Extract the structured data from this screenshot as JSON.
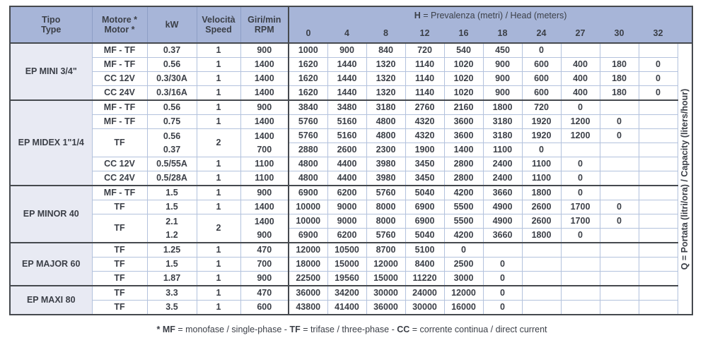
{
  "table": {
    "header": {
      "tipo": [
        "Tipo",
        "Type"
      ],
      "motore": [
        "Motore *",
        "Motor *"
      ],
      "kw": "kW",
      "velocita": [
        "Velocità",
        "Speed"
      ],
      "rpm": [
        "Giri/min",
        "RPM"
      ],
      "h_bold": "H",
      "h_rest": " = Prevalenza (metri) / Head (meters)",
      "head_cols": [
        "0",
        "4",
        "8",
        "12",
        "16",
        "18",
        "24",
        "27",
        "30",
        "32"
      ]
    },
    "q_label": "Q = Portata (litri/ora) / Capacity (liters/hour)",
    "groups": [
      {
        "name": "EP MINI 3/4\"",
        "rows": [
          {
            "motor": "MF - TF",
            "kw": "0.37",
            "speed": "1",
            "rpm": "900",
            "values": [
              "1000",
              "900",
              "840",
              "720",
              "540",
              "450",
              "0",
              "",
              "",
              ""
            ]
          },
          {
            "motor": "MF - TF",
            "kw": "0.56",
            "speed": "1",
            "rpm": "1400",
            "values": [
              "1620",
              "1440",
              "1320",
              "1140",
              "1020",
              "900",
              "600",
              "400",
              "180",
              "0"
            ]
          },
          {
            "motor": "CC 12V",
            "kw": "0.3/30A",
            "speed": "1",
            "rpm": "1400",
            "values": [
              "1620",
              "1440",
              "1320",
              "1140",
              "1020",
              "900",
              "600",
              "400",
              "180",
              "0"
            ]
          },
          {
            "motor": "CC 24V",
            "kw": "0.3/16A",
            "speed": "1",
            "rpm": "1400",
            "values": [
              "1620",
              "1440",
              "1320",
              "1140",
              "1020",
              "900",
              "600",
              "400",
              "180",
              "0"
            ]
          }
        ]
      },
      {
        "name": "EP MIDEX 1\"1/4",
        "rows": [
          {
            "motor": "MF - TF",
            "kw": "0.56",
            "speed": "1",
            "rpm": "900",
            "values": [
              "3840",
              "3480",
              "3180",
              "2760",
              "2160",
              "1800",
              "720",
              "0",
              "",
              ""
            ]
          },
          {
            "motor": "MF - TF",
            "kw": "0.75",
            "speed": "1",
            "rpm": "1400",
            "values": [
              "5760",
              "5160",
              "4800",
              "4320",
              "3600",
              "3180",
              "1920",
              "1200",
              "0",
              ""
            ]
          },
          {
            "motor": "TF",
            "mspan": 2,
            "kw": "0.56",
            "speed": "2",
            "sspan": 2,
            "rpm": "1400",
            "nb": true,
            "values": [
              "5760",
              "5160",
              "4800",
              "4320",
              "3600",
              "3180",
              "1920",
              "1200",
              "0",
              ""
            ]
          },
          {
            "kw": "0.37",
            "rpm": "700",
            "values": [
              "2880",
              "2600",
              "2300",
              "1900",
              "1400",
              "1100",
              "0",
              "",
              "",
              ""
            ]
          },
          {
            "motor": "CC 12V",
            "kw": "0.5/55A",
            "speed": "1",
            "rpm": "1100",
            "values": [
              "4800",
              "4400",
              "3980",
              "3450",
              "2800",
              "2400",
              "1100",
              "0",
              "",
              ""
            ]
          },
          {
            "motor": "CC 24V",
            "kw": "0.5/28A",
            "speed": "1",
            "rpm": "1100",
            "values": [
              "4800",
              "4400",
              "3980",
              "3450",
              "2800",
              "2400",
              "1100",
              "0",
              "",
              ""
            ]
          }
        ]
      },
      {
        "name": "EP MINOR 40",
        "rows": [
          {
            "motor": "MF - TF",
            "kw": "1.5",
            "speed": "1",
            "rpm": "900",
            "values": [
              "6900",
              "6200",
              "5760",
              "5040",
              "4200",
              "3660",
              "1800",
              "0",
              "",
              ""
            ]
          },
          {
            "motor": "TF",
            "kw": "1.5",
            "speed": "1",
            "rpm": "1400",
            "values": [
              "10000",
              "9000",
              "8000",
              "6900",
              "5500",
              "4900",
              "2600",
              "1700",
              "0",
              ""
            ]
          },
          {
            "motor": "TF",
            "mspan": 2,
            "kw": "2.1",
            "speed": "2",
            "sspan": 2,
            "rpm": "1400",
            "nb": true,
            "values": [
              "10000",
              "9000",
              "8000",
              "6900",
              "5500",
              "4900",
              "2600",
              "1700",
              "0",
              ""
            ]
          },
          {
            "kw": "1.2",
            "rpm": "900",
            "values": [
              "6900",
              "6200",
              "5760",
              "5040",
              "4200",
              "3660",
              "1800",
              "0",
              "",
              ""
            ]
          }
        ]
      },
      {
        "name": "EP MAJOR 60",
        "rows": [
          {
            "motor": "TF",
            "kw": "1.25",
            "speed": "1",
            "rpm": "470",
            "values": [
              "12000",
              "10500",
              "8700",
              "5100",
              "0",
              "",
              "",
              "",
              "",
              ""
            ]
          },
          {
            "motor": "TF",
            "kw": "1.5",
            "speed": "1",
            "rpm": "700",
            "values": [
              "18000",
              "15000",
              "12000",
              "8400",
              "2500",
              "0",
              "",
              "",
              "",
              ""
            ]
          },
          {
            "motor": "TF",
            "kw": "1.87",
            "speed": "1",
            "rpm": "900",
            "values": [
              "22500",
              "19560",
              "15000",
              "11220",
              "3000",
              "0",
              "",
              "",
              "",
              ""
            ]
          }
        ]
      },
      {
        "name": "EP MAXI 80",
        "rows": [
          {
            "motor": "TF",
            "kw": "3.3",
            "speed": "1",
            "rpm": "470",
            "values": [
              "36000",
              "34200",
              "30000",
              "24000",
              "12000",
              "0",
              "",
              "",
              "",
              ""
            ]
          },
          {
            "motor": "TF",
            "kw": "3.5",
            "speed": "1",
            "rpm": "600",
            "values": [
              "43800",
              "41400",
              "36000",
              "30000",
              "16000",
              "0",
              "",
              "",
              "",
              ""
            ]
          }
        ]
      }
    ]
  },
  "footnote": [
    {
      "text": "* MF",
      "bold": true
    },
    {
      "text": " = monofase / single-phase - ",
      "bold": false
    },
    {
      "text": "TF",
      "bold": true
    },
    {
      "text": " = trifase / three-phase - ",
      "bold": false
    },
    {
      "text": "CC",
      "bold": true
    },
    {
      "text": " = corrente continua / direct current",
      "bold": false
    }
  ]
}
